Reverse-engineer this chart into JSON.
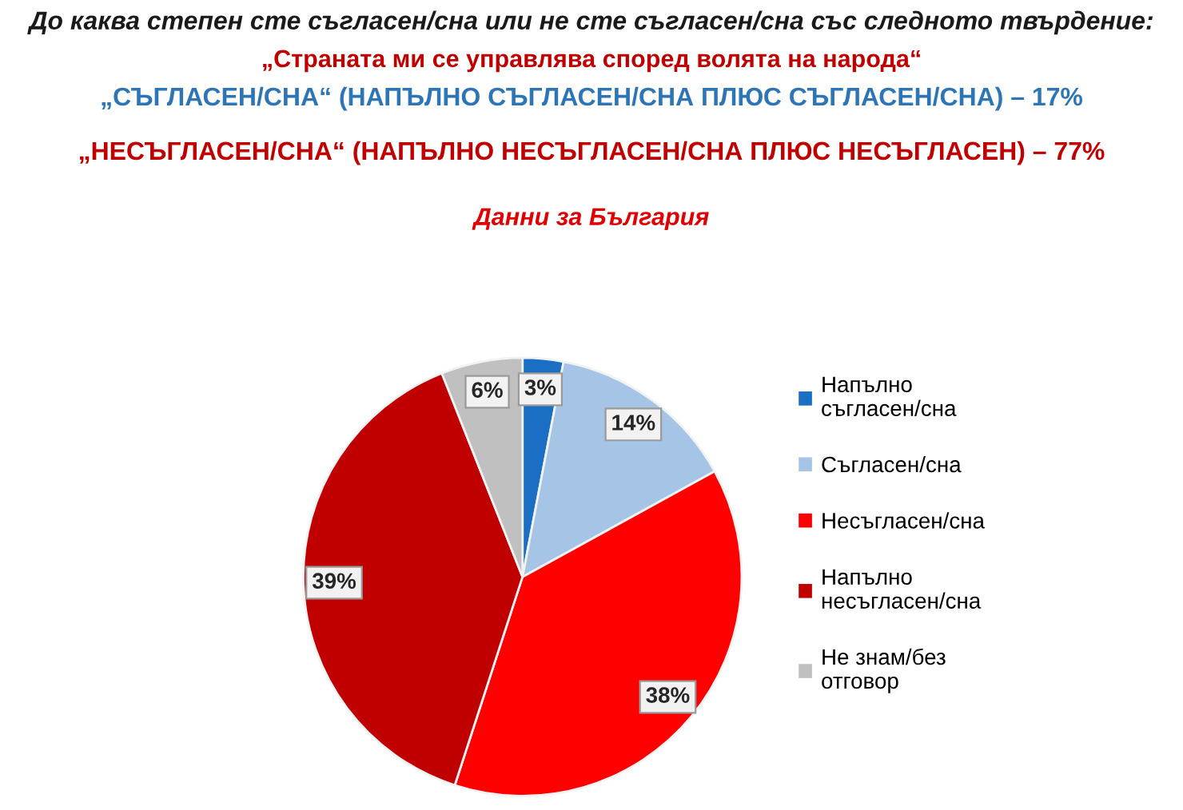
{
  "chart_data": {
    "type": "pie",
    "title": "До каква степен сте съгласен/сна или не сте съгласен/сна със следното твърдение:",
    "subtitle": "„Страната ми се управлява според волята на народа“",
    "annotations": [
      "„СЪГЛАСЕН/СНА“ (НАПЪЛНО СЪГЛАСЕН/СНА ПЛЮС СЪГЛАСЕН/СНА) – 17%",
      "„НЕСЪГЛАСЕН/СНА“ (НАПЪЛНО НЕСЪГЛАСЕН/СНА ПЛЮС НЕСЪГЛАСЕН) – 77%",
      "Данни за България"
    ],
    "categories": [
      "Напълно съгласен/сна",
      "Съгласен/сна",
      "Несъгласен/сна",
      "Напълно несъгласен/сна",
      "Не знам/без отговор"
    ],
    "values": [
      3,
      14,
      38,
      39,
      6
    ],
    "colors": [
      "#1a6fc4",
      "#a6c4e6",
      "#ff0000",
      "#c00000",
      "#c0c0c0"
    ],
    "value_labels": [
      "3%",
      "14%",
      "38%",
      "39%",
      "6%"
    ],
    "legend": "right"
  }
}
